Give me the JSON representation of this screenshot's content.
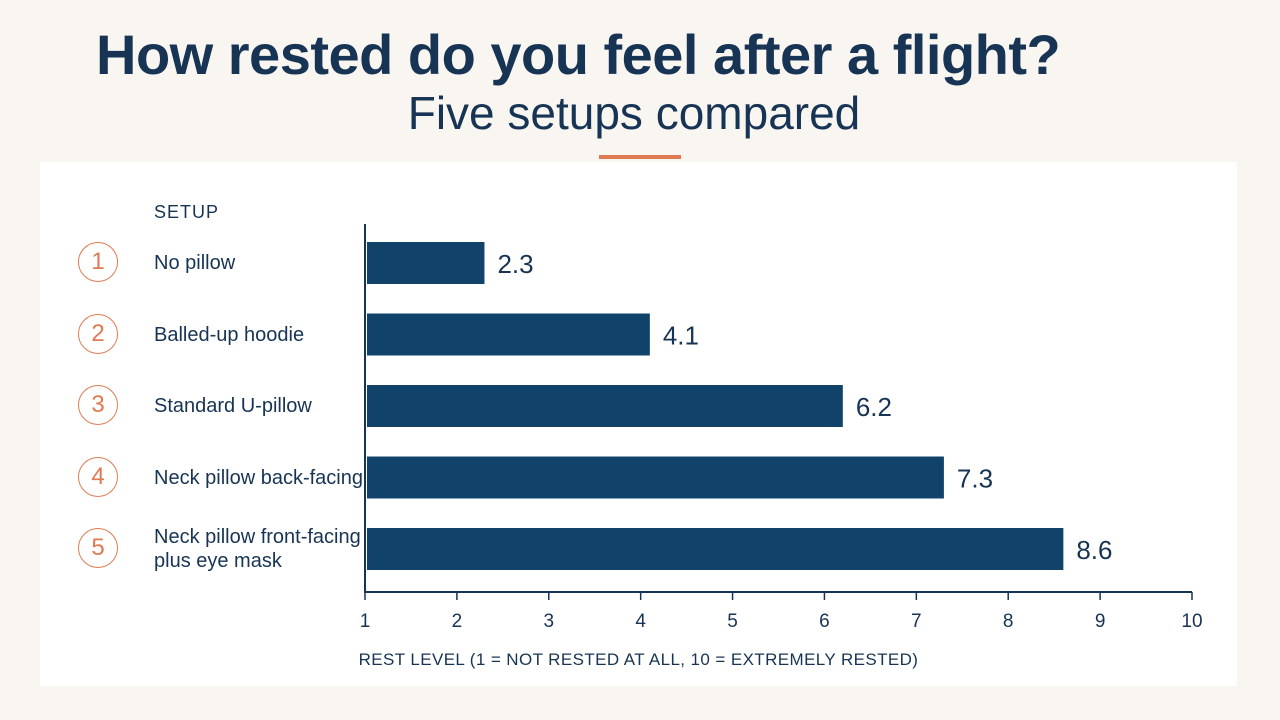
{
  "header": {
    "title": "How rested do you feel after a flight?",
    "subtitle": "Five setups compared"
  },
  "colors": {
    "bar": "#11436a",
    "accent": "#e07a52",
    "text": "#173454"
  },
  "chart_data": {
    "type": "bar",
    "orientation": "horizontal",
    "category_header": "SETUP",
    "categories": [
      {
        "number": "1",
        "label": "No pillow"
      },
      {
        "number": "2",
        "label": "Balled-up hoodie"
      },
      {
        "number": "3",
        "label": "Standard U-pillow"
      },
      {
        "number": "4",
        "label": "Neck pillow back-facing"
      },
      {
        "number": "5",
        "label": "Neck pillow front-facing plus eye mask"
      }
    ],
    "values": [
      2.3,
      4.1,
      6.2,
      7.3,
      8.6
    ],
    "value_labels": [
      "2.3",
      "4.1",
      "6.2",
      "7.3",
      "8.6"
    ],
    "xlabel": "REST LEVEL (1 = NOT RESTED AT ALL, 10 = EXTREMELY RESTED)",
    "xlim": [
      1,
      10
    ],
    "xticks": [
      "1",
      "2",
      "3",
      "4",
      "5",
      "6",
      "7",
      "8",
      "9",
      "10"
    ],
    "grid": false,
    "legend": "none"
  }
}
